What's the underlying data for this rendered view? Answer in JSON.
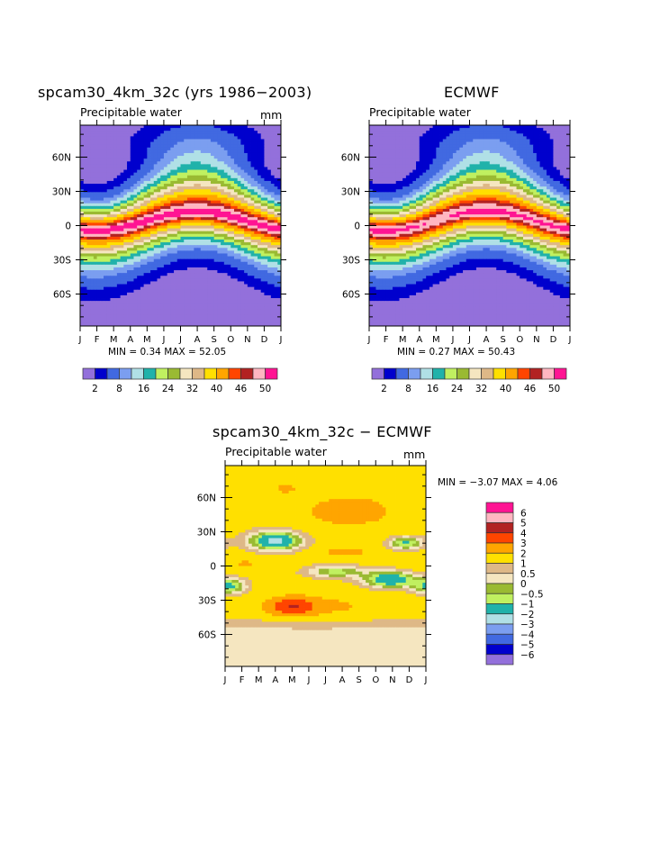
{
  "chart_data": [
    {
      "type": "heatmap",
      "title": "spcam30_4km_32c (yrs 1986−2003)",
      "subtitle_left": "Precipitable water",
      "subtitle_right": "mm",
      "x_tick_labels": [
        "J",
        "F",
        "M",
        "A",
        "M",
        "J",
        "J",
        "A",
        "S",
        "O",
        "N",
        "D",
        "J"
      ],
      "y_tick_labels": [
        "60N",
        "30N",
        "0",
        "30S",
        "60S"
      ],
      "y_tick_values": [
        60,
        30,
        0,
        -30,
        -60
      ],
      "ylim": [
        -90,
        90
      ],
      "min_max_text": "MIN =    0.34 MAX =   52.05",
      "min": 0.34,
      "max": 52.05,
      "colorbar_labels": [
        "2",
        "8",
        "16",
        "24",
        "32",
        "40",
        "46",
        "50"
      ],
      "colorbar_orientation": "horizontal"
    },
    {
      "type": "heatmap",
      "title": "ECMWF",
      "subtitle_left": "Precipitable water",
      "x_tick_labels": [
        "J",
        "F",
        "M",
        "A",
        "M",
        "J",
        "J",
        "A",
        "S",
        "O",
        "N",
        "D",
        "J"
      ],
      "y_tick_labels": [
        "60N",
        "30N",
        "0",
        "30S",
        "60S"
      ],
      "y_tick_values": [
        60,
        30,
        0,
        -30,
        -60
      ],
      "ylim": [
        -90,
        90
      ],
      "min_max_text": "MIN =    0.27 MAX =   50.43",
      "min": 0.27,
      "max": 50.43,
      "colorbar_labels": [
        "2",
        "8",
        "16",
        "24",
        "32",
        "40",
        "46",
        "50"
      ],
      "colorbar_orientation": "horizontal"
    },
    {
      "type": "heatmap",
      "title": "spcam30_4km_32c − ECMWF",
      "subtitle_left": "Precipitable water",
      "subtitle_right": "mm",
      "x_tick_labels": [
        "J",
        "F",
        "M",
        "A",
        "M",
        "J",
        "J",
        "A",
        "S",
        "O",
        "N",
        "D",
        "J"
      ],
      "y_tick_labels": [
        "60N",
        "30N",
        "0",
        "30S",
        "60S"
      ],
      "y_tick_values": [
        60,
        30,
        0,
        -30,
        -60
      ],
      "ylim": [
        -90,
        90
      ],
      "min_max_text": "MIN =   −3.07 MAX =    4.06",
      "min": -3.07,
      "max": 4.06,
      "colorbar_labels": [
        "6",
        "5",
        "4",
        "3",
        "2",
        "1",
        "0.5",
        "0",
        "−0.5",
        "−1",
        "−2",
        "−3",
        "−4",
        "−5",
        "−6"
      ],
      "colorbar_orientation": "vertical"
    }
  ],
  "colors": [
    "#9370db",
    "#0000cd",
    "#4169e1",
    "#7b9ef0",
    "#b0e0e6",
    "#20b2aa",
    "#c0f060",
    "#9aba32",
    "#f5e6c0",
    "#deb887",
    "#ffe000",
    "#ffa500",
    "#ff4500",
    "#b22222",
    "#ffb6c1",
    "#ff1493"
  ]
}
